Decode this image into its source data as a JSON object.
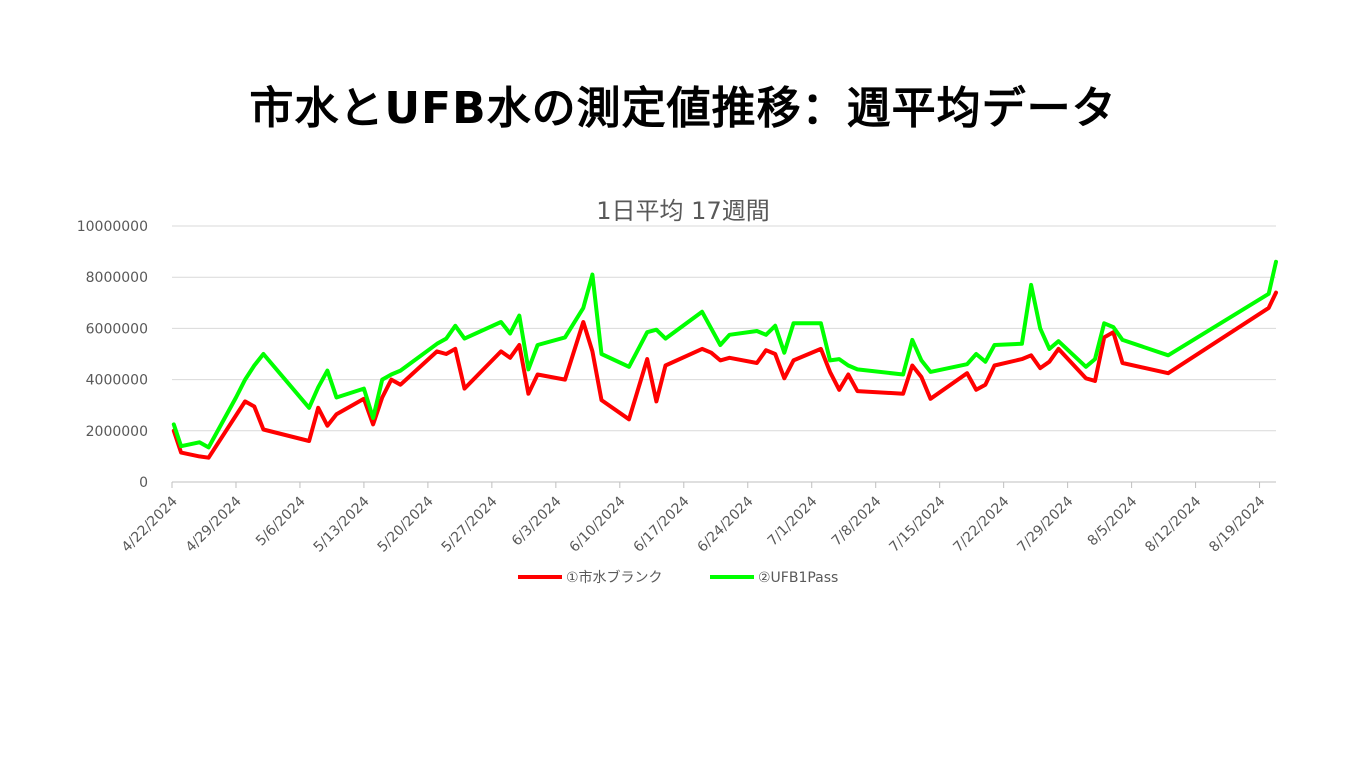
{
  "page_title": "市水とUFB水の測定値推移：週平均データ",
  "chart_data": {
    "type": "line",
    "title": "1日平均 17週間",
    "xlabel": "",
    "ylabel": "",
    "ylim": [
      0,
      10000000
    ],
    "yticks": [
      "0",
      "2000000",
      "4000000",
      "6000000",
      "8000000",
      "10000000"
    ],
    "x_tick_labels": [
      "4/22/2024",
      "4/29/2024",
      "5/6/2024",
      "5/13/2024",
      "5/20/2024",
      "5/27/2024",
      "6/3/2024",
      "6/10/2024",
      "6/17/2024",
      "6/24/2024",
      "7/1/2024",
      "7/8/2024",
      "7/15/2024",
      "7/22/2024",
      "7/29/2024",
      "8/5/2024",
      "8/12/2024",
      "8/19/2024"
    ],
    "grid": true,
    "legend_position": "bottom",
    "series": [
      {
        "name": "①市水ブランク",
        "color": "#ff0000",
        "points": [
          [
            0.2,
            2000000
          ],
          [
            1,
            1150000
          ],
          [
            3,
            1000000
          ],
          [
            4,
            950000
          ],
          [
            8,
            3150000
          ],
          [
            9,
            2950000
          ],
          [
            10,
            2050000
          ],
          [
            15,
            1600000
          ],
          [
            16,
            2900000
          ],
          [
            17,
            2200000
          ],
          [
            18,
            2650000
          ],
          [
            21,
            3250000
          ],
          [
            22,
            2250000
          ],
          [
            23,
            3300000
          ],
          [
            24,
            4000000
          ],
          [
            25,
            3800000
          ],
          [
            29,
            5100000
          ],
          [
            30,
            5000000
          ],
          [
            31,
            5200000
          ],
          [
            32,
            3650000
          ],
          [
            36,
            5100000
          ],
          [
            37,
            4850000
          ],
          [
            38,
            5350000
          ],
          [
            39,
            3450000
          ],
          [
            40,
            4200000
          ],
          [
            43,
            4000000
          ],
          [
            45,
            6250000
          ],
          [
            46,
            5100000
          ],
          [
            47,
            3200000
          ],
          [
            50,
            2450000
          ],
          [
            52,
            4800000
          ],
          [
            53,
            3150000
          ],
          [
            54,
            4550000
          ],
          [
            58,
            5200000
          ],
          [
            59,
            5050000
          ],
          [
            60,
            4750000
          ],
          [
            61,
            4850000
          ],
          [
            64,
            4650000
          ],
          [
            65,
            5150000
          ],
          [
            66,
            5000000
          ],
          [
            67,
            4050000
          ],
          [
            68,
            4750000
          ],
          [
            71,
            5200000
          ],
          [
            72,
            4300000
          ],
          [
            73,
            3600000
          ],
          [
            74,
            4200000
          ],
          [
            75,
            3550000
          ],
          [
            80,
            3450000
          ],
          [
            81,
            4550000
          ],
          [
            82,
            4100000
          ],
          [
            83,
            3250000
          ],
          [
            87,
            4250000
          ],
          [
            88,
            3600000
          ],
          [
            89,
            3800000
          ],
          [
            90,
            4550000
          ],
          [
            93,
            4800000
          ],
          [
            94,
            4950000
          ],
          [
            95,
            4450000
          ],
          [
            96,
            4700000
          ],
          [
            97,
            5200000
          ],
          [
            100,
            4050000
          ],
          [
            101,
            3950000
          ],
          [
            102,
            5650000
          ],
          [
            103,
            5850000
          ],
          [
            104,
            4650000
          ],
          [
            109,
            4250000
          ],
          [
            120,
            6800000
          ],
          [
            120.8,
            7400000
          ]
        ]
      },
      {
        "name": "②UFB1Pass",
        "color": "#00ff00",
        "points": [
          [
            0.2,
            2250000
          ],
          [
            1,
            1400000
          ],
          [
            3,
            1550000
          ],
          [
            4,
            1350000
          ],
          [
            7,
            3300000
          ],
          [
            8,
            4000000
          ],
          [
            9,
            4550000
          ],
          [
            10,
            5000000
          ],
          [
            15,
            2900000
          ],
          [
            16,
            3700000
          ],
          [
            17,
            4350000
          ],
          [
            18,
            3300000
          ],
          [
            21,
            3650000
          ],
          [
            22,
            2500000
          ],
          [
            23,
            4000000
          ],
          [
            24,
            4200000
          ],
          [
            25,
            4350000
          ],
          [
            29,
            5400000
          ],
          [
            30,
            5600000
          ],
          [
            31,
            6100000
          ],
          [
            32,
            5600000
          ],
          [
            36,
            6250000
          ],
          [
            37,
            5800000
          ],
          [
            38,
            6500000
          ],
          [
            39,
            4400000
          ],
          [
            40,
            5350000
          ],
          [
            43,
            5650000
          ],
          [
            45,
            6800000
          ],
          [
            46,
            8100000
          ],
          [
            47,
            5000000
          ],
          [
            50,
            4500000
          ],
          [
            52,
            5850000
          ],
          [
            53,
            5950000
          ],
          [
            54,
            5600000
          ],
          [
            58,
            6650000
          ],
          [
            59,
            6000000
          ],
          [
            60,
            5350000
          ],
          [
            61,
            5750000
          ],
          [
            64,
            5900000
          ],
          [
            65,
            5750000
          ],
          [
            66,
            6100000
          ],
          [
            67,
            5050000
          ],
          [
            68,
            6200000
          ],
          [
            71,
            6200000
          ],
          [
            72,
            4750000
          ],
          [
            73,
            4800000
          ],
          [
            74,
            4550000
          ],
          [
            75,
            4400000
          ],
          [
            80,
            4200000
          ],
          [
            81,
            5550000
          ],
          [
            82,
            4750000
          ],
          [
            83,
            4300000
          ],
          [
            87,
            4600000
          ],
          [
            88,
            5000000
          ],
          [
            89,
            4700000
          ],
          [
            90,
            5350000
          ],
          [
            93,
            5400000
          ],
          [
            94,
            7700000
          ],
          [
            95,
            6000000
          ],
          [
            96,
            5200000
          ],
          [
            97,
            5500000
          ],
          [
            100,
            4500000
          ],
          [
            101,
            4800000
          ],
          [
            102,
            6200000
          ],
          [
            103,
            6050000
          ],
          [
            104,
            5550000
          ],
          [
            109,
            4950000
          ],
          [
            120,
            7350000
          ],
          [
            120.8,
            8600000
          ]
        ]
      }
    ]
  }
}
